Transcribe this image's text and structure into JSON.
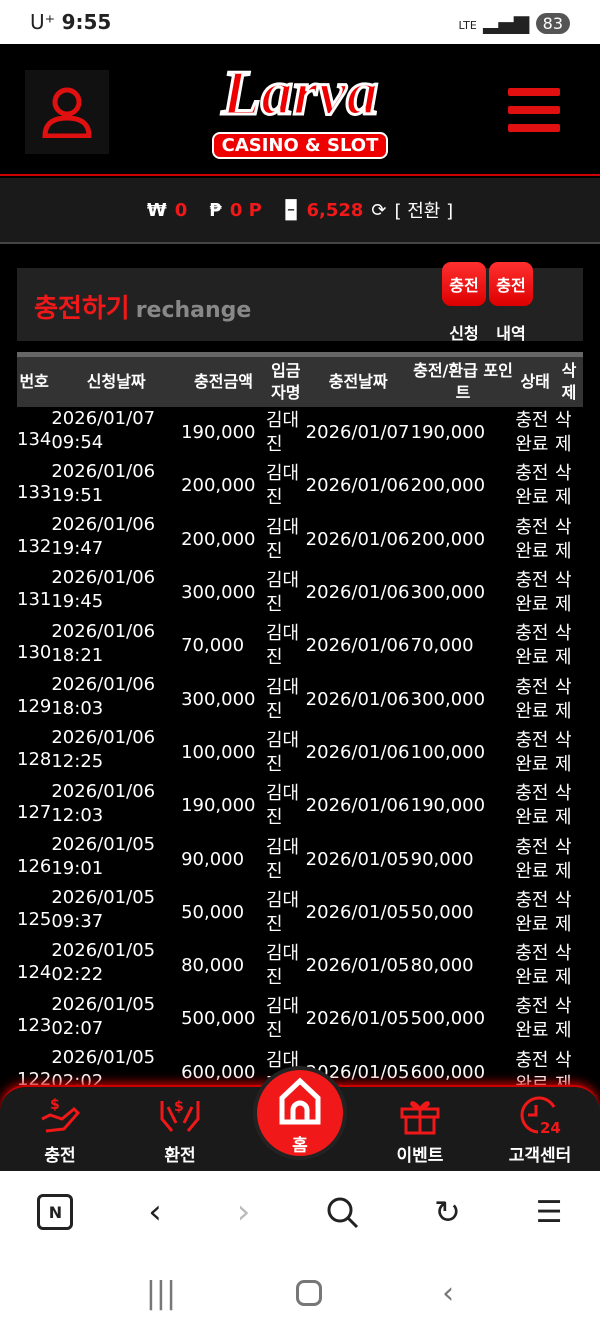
{
  "status": {
    "carrier": "U⁺",
    "time": "9:55",
    "network": "LTE",
    "battery": "83"
  },
  "header": {
    "logo_main": "Larva",
    "logo_sub": "CASINO & SLOT"
  },
  "balance": {
    "won_symbol": "₩",
    "won": "0",
    "point_symbol": "₱",
    "point": "0 P",
    "chip": "6,528",
    "convert": "[ 전환 ]"
  },
  "panel": {
    "title": "충전하기",
    "subtitle": "rechange",
    "btn1": "충전",
    "btn1_label": "신청",
    "btn2": "충전",
    "btn2_label": "내역"
  },
  "table": {
    "headers": [
      "번호",
      "신청날짜",
      "충전금액",
      "입금자명",
      "충전날짜",
      "충전/환급 포인트",
      "상태",
      "삭제"
    ],
    "rows": [
      [
        "134",
        "2026/01/07 09:54",
        "190,000",
        "김대진",
        "2026/01/07",
        "190,000",
        "충전완료",
        "삭제"
      ],
      [
        "133",
        "2026/01/06 19:51",
        "200,000",
        "김대진",
        "2026/01/06",
        "200,000",
        "충전완료",
        "삭제"
      ],
      [
        "132",
        "2026/01/06 19:47",
        "200,000",
        "김대진",
        "2026/01/06",
        "200,000",
        "충전완료",
        "삭제"
      ],
      [
        "131",
        "2026/01/06 19:45",
        "300,000",
        "김대진",
        "2026/01/06",
        "300,000",
        "충전완료",
        "삭제"
      ],
      [
        "130",
        "2026/01/06 18:21",
        "70,000",
        "김대진",
        "2026/01/06",
        "70,000",
        "충전완료",
        "삭제"
      ],
      [
        "129",
        "2026/01/06 18:03",
        "300,000",
        "김대진",
        "2026/01/06",
        "300,000",
        "충전완료",
        "삭제"
      ],
      [
        "128",
        "2026/01/06 12:25",
        "100,000",
        "김대진",
        "2026/01/06",
        "100,000",
        "충전완료",
        "삭제"
      ],
      [
        "127",
        "2026/01/06 12:03",
        "190,000",
        "김대진",
        "2026/01/06",
        "190,000",
        "충전완료",
        "삭제"
      ],
      [
        "126",
        "2026/01/05 19:01",
        "90,000",
        "김대진",
        "2026/01/05",
        "90,000",
        "충전완료",
        "삭제"
      ],
      [
        "125",
        "2026/01/05 09:37",
        "50,000",
        "김대진",
        "2026/01/05",
        "50,000",
        "충전완료",
        "삭제"
      ],
      [
        "124",
        "2026/01/05 02:22",
        "80,000",
        "김대진",
        "2026/01/05",
        "80,000",
        "충전완료",
        "삭제"
      ],
      [
        "123",
        "2026/01/05 02:07",
        "500,000",
        "김대진",
        "2026/01/05",
        "500,000",
        "충전완료",
        "삭제"
      ],
      [
        "122",
        "2026/01/05 02:02",
        "600,000",
        "김대진",
        "2026/01/05",
        "600,000",
        "충전완료",
        "삭제"
      ]
    ]
  },
  "nav": {
    "charge": "충전",
    "exchange": "환전",
    "home": "홈",
    "event": "이벤트",
    "support": "고객센터"
  },
  "colors": {
    "accent": "#f01818",
    "panel": "#222222"
  }
}
